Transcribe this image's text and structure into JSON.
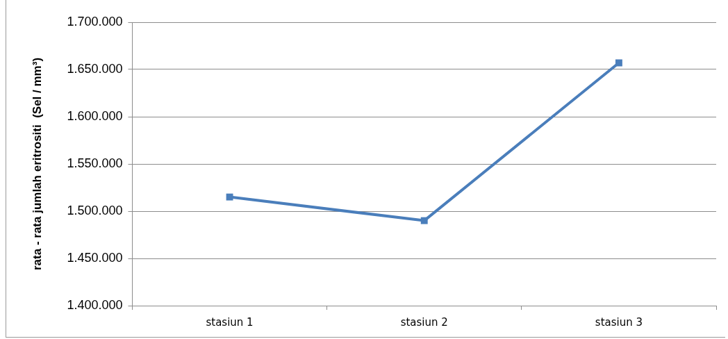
{
  "chart_data": {
    "type": "line",
    "ylabel": "rata - rata jumlah eritrositi  (Sel / mm³)",
    "categories": [
      "stasiun 1",
      "stasiun 2",
      "stasiun 3"
    ],
    "series": [
      {
        "color": "#4a7ebb",
        "values": [
          1515000,
          1490000,
          1657000
        ]
      }
    ],
    "ylim": [
      1400000,
      1700000
    ],
    "yticks": [
      {
        "value": 1400000,
        "label": "1.400.000"
      },
      {
        "value": 1450000,
        "label": "1.450.000"
      },
      {
        "value": 1500000,
        "label": "1.500.000"
      },
      {
        "value": 1550000,
        "label": "1.550.000"
      },
      {
        "value": 1600000,
        "label": "1.600.000"
      },
      {
        "value": 1650000,
        "label": "1.650.000"
      },
      {
        "value": 1700000,
        "label": "1.700.000"
      }
    ],
    "grid": "y",
    "legend": false,
    "marker": "square",
    "line_style": "solid"
  }
}
